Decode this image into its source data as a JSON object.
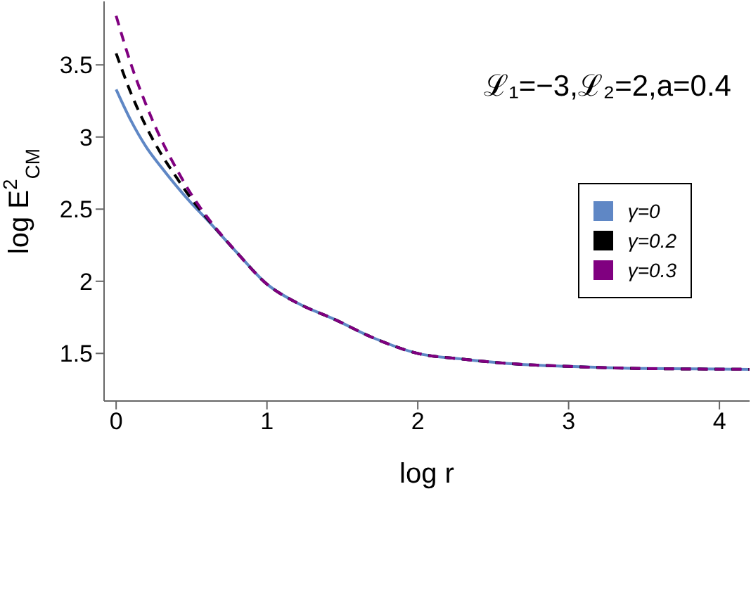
{
  "chart_data": {
    "type": "line",
    "xlabel": "log r",
    "ylabel": "log E$^{2}$$_{CM}$",
    "annotations": [
      "ℒ₁=−3,ℒ₂=2,a=0.4"
    ],
    "x": [
      0,
      0.1,
      0.2,
      0.3,
      0.4,
      0.5,
      0.6,
      0.8,
      1,
      1.2,
      1.45,
      1.7,
      2,
      2.3,
      2.6,
      3,
      3.5,
      4.2
    ],
    "series": [
      {
        "name": "γ=0",
        "color": "#5f87c5",
        "line_style": "solid",
        "values": [
          3.33,
          3.11,
          2.93,
          2.79,
          2.66,
          2.54,
          2.43,
          2.2,
          1.98,
          1.85,
          1.735,
          1.61,
          1.5,
          1.46,
          1.43,
          1.41,
          1.395,
          1.39
        ]
      },
      {
        "name": "γ=0.2",
        "color": "#000000",
        "line_style": "dashed",
        "values": [
          3.58,
          3.3,
          3.07,
          2.88,
          2.72,
          2.57,
          2.44,
          2.2,
          1.98,
          1.85,
          1.735,
          1.61,
          1.5,
          1.46,
          1.43,
          1.41,
          1.395,
          1.39
        ]
      },
      {
        "name": "γ=0.3",
        "color": "#800080",
        "line_style": "dashed",
        "values": [
          3.84,
          3.5,
          3.22,
          2.98,
          2.78,
          2.6,
          2.45,
          2.2,
          1.98,
          1.85,
          1.735,
          1.61,
          1.5,
          1.46,
          1.43,
          1.41,
          1.395,
          1.39
        ]
      }
    ],
    "xlim": [
      -0.08,
      4.2
    ],
    "ylim": [
      1.17,
      3.94
    ],
    "xticks": [
      0,
      1,
      2,
      3,
      4
    ],
    "yticks": [
      1.5,
      2,
      2.5,
      3,
      3.5
    ],
    "grid": false,
    "legend": "right",
    "marker": "none"
  }
}
